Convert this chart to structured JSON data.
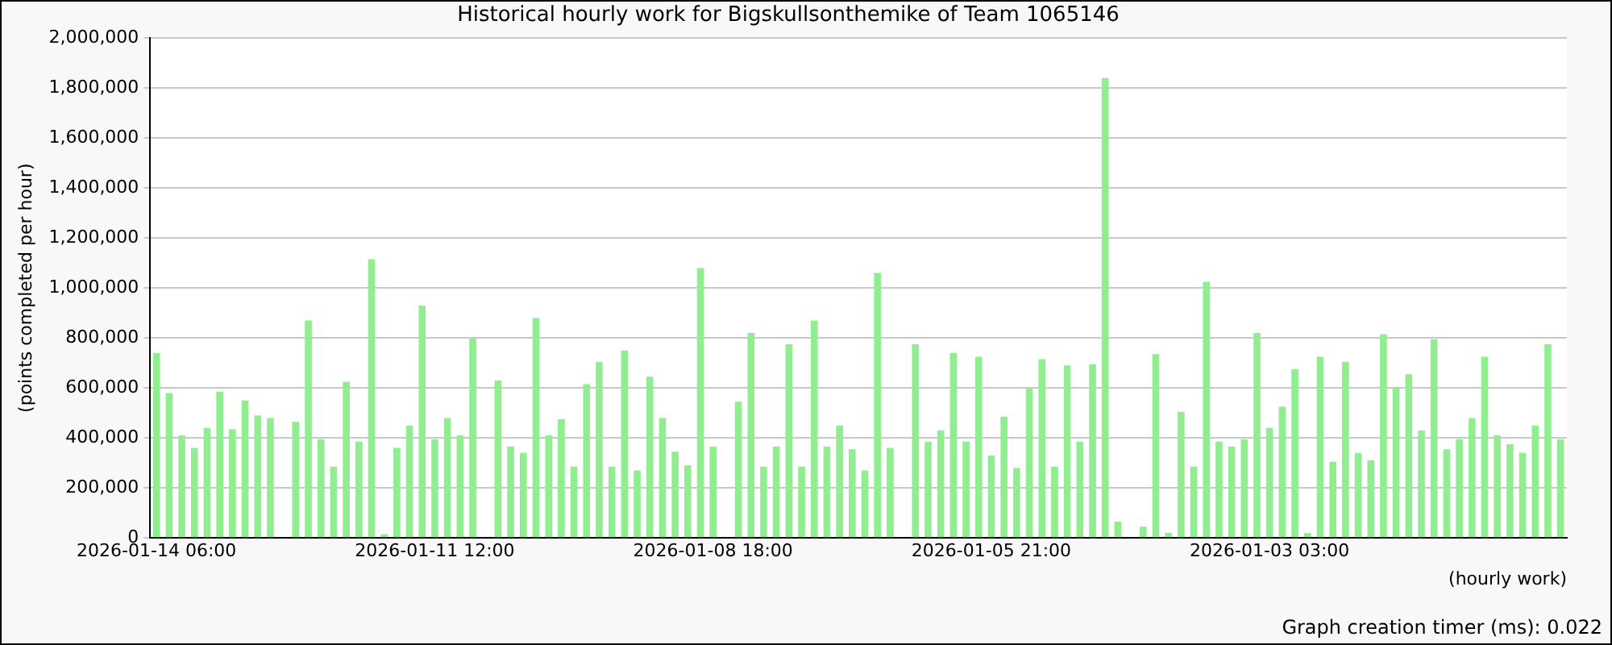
{
  "chart_data": {
    "type": "bar",
    "title": "Historical hourly work for Bigskullsonthemike of Team 1065146",
    "xlabel": "(hourly work)",
    "ylabel": "(points completed per hour)",
    "annotations": [
      "Graph creation timer (ms): 0.022"
    ],
    "categories": [
      "2026-01-14 06:00",
      null,
      null,
      null,
      null,
      null,
      null,
      null,
      null,
      null,
      null,
      null,
      null,
      null,
      null,
      null,
      null,
      null,
      null,
      null,
      null,
      null,
      "2026-01-11 12:00",
      null,
      null,
      null,
      null,
      null,
      null,
      null,
      null,
      null,
      null,
      null,
      null,
      null,
      null,
      null,
      null,
      null,
      null,
      null,
      null,
      null,
      "2026-01-08 18:00",
      null,
      null,
      null,
      null,
      null,
      null,
      null,
      null,
      null,
      null,
      null,
      null,
      null,
      null,
      null,
      null,
      null,
      null,
      null,
      null,
      null,
      "2026-01-05 21:00",
      null,
      null,
      null,
      null,
      null,
      null,
      null,
      null,
      null,
      null,
      null,
      null,
      null,
      null,
      null,
      null,
      null,
      null,
      null,
      null,
      null,
      "2026-01-03 03:00",
      null,
      null,
      null,
      null,
      null,
      null,
      null,
      null,
      null,
      null,
      null,
      null,
      null,
      null,
      null,
      null,
      null,
      null,
      null,
      null,
      null,
      null,
      null
    ],
    "values": [
      740000,
      580000,
      410000,
      360000,
      440000,
      585000,
      435000,
      550000,
      490000,
      480000,
      0,
      465000,
      870000,
      395000,
      285000,
      625000,
      385000,
      1115000,
      15000,
      360000,
      450000,
      930000,
      395000,
      480000,
      410000,
      800000,
      0,
      630000,
      365000,
      340000,
      880000,
      410000,
      475000,
      285000,
      615000,
      705000,
      285000,
      750000,
      270000,
      645000,
      480000,
      345000,
      290000,
      1080000,
      365000,
      0,
      545000,
      820000,
      285000,
      365000,
      775000,
      285000,
      870000,
      365000,
      450000,
      355000,
      270000,
      1060000,
      360000,
      0,
      775000,
      385000,
      430000,
      740000,
      385000,
      725000,
      330000,
      485000,
      280000,
      600000,
      715000,
      285000,
      690000,
      385000,
      695000,
      1840000,
      65000,
      0,
      45000,
      735000,
      20000,
      505000,
      285000,
      1025000,
      385000,
      365000,
      395000,
      820000,
      440000,
      525000,
      675000,
      20000,
      725000,
      305000,
      705000,
      340000,
      310000,
      815000,
      600000,
      655000,
      430000,
      795000,
      355000,
      395000,
      480000,
      725000,
      410000,
      375000,
      340000,
      450000,
      775000,
      395000
    ],
    "color": "#90ee90",
    "ylim": [
      0,
      2000000
    ],
    "yticks": [
      0,
      {
        "value": 200000,
        "label": "200,000"
      },
      {
        "value": 400000,
        "label": "400,000"
      },
      {
        "value": 600000,
        "label": "600,000"
      },
      {
        "value": 800000,
        "label": "800,000"
      },
      {
        "value": 1000000,
        "label": "1,000,000"
      },
      {
        "value": 1200000,
        "label": "1,200,000"
      },
      {
        "value": 1400000,
        "label": "1,400,000"
      },
      {
        "value": 1600000,
        "label": "1,600,000"
      },
      {
        "value": 1800000,
        "label": "1,800,000"
      },
      {
        "value": 2000000,
        "label": "2,000,000"
      }
    ],
    "grid": "y",
    "legend": false
  }
}
